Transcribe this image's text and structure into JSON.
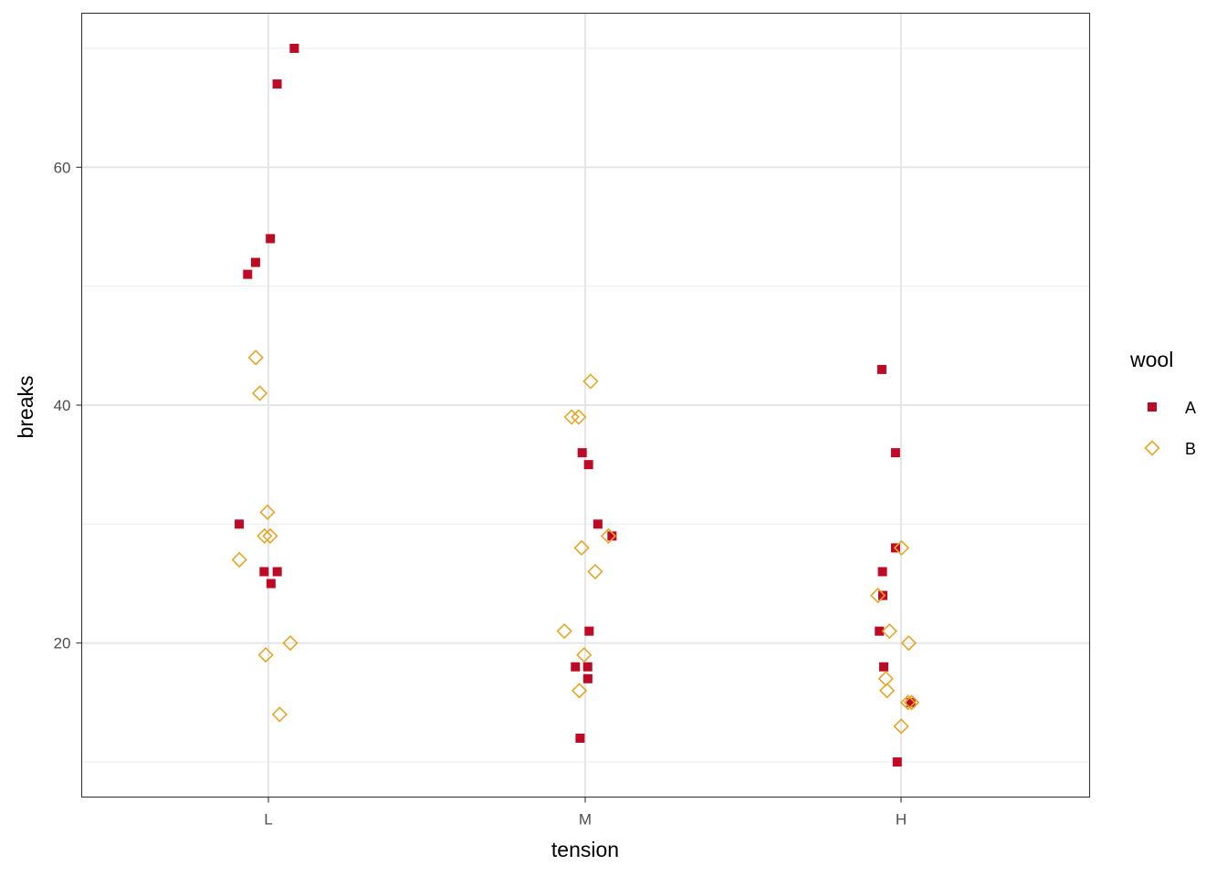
{
  "chart_data": {
    "type": "scatter",
    "title": "",
    "xlabel": "tension",
    "ylabel": "breaks",
    "categories": [
      "L",
      "M",
      "H"
    ],
    "y_ticks": [
      20,
      40,
      60
    ],
    "ylim": [
      7.05,
      72.95
    ],
    "grid": true,
    "legend": {
      "title": "wool",
      "position": "right"
    },
    "series": [
      {
        "name": "A",
        "marker": "filled-square",
        "color": "#BF0A26",
        "points": [
          {
            "x": "L",
            "y": 70
          },
          {
            "x": "L",
            "y": 67
          },
          {
            "x": "L",
            "y": 54
          },
          {
            "x": "L",
            "y": 52
          },
          {
            "x": "L",
            "y": 51
          },
          {
            "x": "L",
            "y": 30
          },
          {
            "x": "L",
            "y": 26
          },
          {
            "x": "L",
            "y": 26
          },
          {
            "x": "L",
            "y": 25
          },
          {
            "x": "M",
            "y": 36
          },
          {
            "x": "M",
            "y": 35
          },
          {
            "x": "M",
            "y": 30
          },
          {
            "x": "M",
            "y": 29
          },
          {
            "x": "M",
            "y": 21
          },
          {
            "x": "M",
            "y": 18
          },
          {
            "x": "M",
            "y": 18
          },
          {
            "x": "M",
            "y": 17
          },
          {
            "x": "M",
            "y": 12
          },
          {
            "x": "H",
            "y": 43
          },
          {
            "x": "H",
            "y": 36
          },
          {
            "x": "H",
            "y": 28
          },
          {
            "x": "H",
            "y": 26
          },
          {
            "x": "H",
            "y": 24
          },
          {
            "x": "H",
            "y": 21
          },
          {
            "x": "H",
            "y": 18
          },
          {
            "x": "H",
            "y": 15
          },
          {
            "x": "H",
            "y": 10
          }
        ]
      },
      {
        "name": "B",
        "marker": "open-diamond",
        "color": "#E8A525",
        "points": [
          {
            "x": "L",
            "y": 44
          },
          {
            "x": "L",
            "y": 41
          },
          {
            "x": "L",
            "y": 31
          },
          {
            "x": "L",
            "y": 29
          },
          {
            "x": "L",
            "y": 29
          },
          {
            "x": "L",
            "y": 27
          },
          {
            "x": "L",
            "y": 20
          },
          {
            "x": "L",
            "y": 19
          },
          {
            "x": "L",
            "y": 14
          },
          {
            "x": "M",
            "y": 42
          },
          {
            "x": "M",
            "y": 39
          },
          {
            "x": "M",
            "y": 39
          },
          {
            "x": "M",
            "y": 29
          },
          {
            "x": "M",
            "y": 28
          },
          {
            "x": "M",
            "y": 26
          },
          {
            "x": "M",
            "y": 21
          },
          {
            "x": "M",
            "y": 19
          },
          {
            "x": "M",
            "y": 16
          },
          {
            "x": "H",
            "y": 28
          },
          {
            "x": "H",
            "y": 24
          },
          {
            "x": "H",
            "y": 21
          },
          {
            "x": "H",
            "y": 20
          },
          {
            "x": "H",
            "y": 17
          },
          {
            "x": "H",
            "y": 16
          },
          {
            "x": "H",
            "y": 15
          },
          {
            "x": "H",
            "y": 15
          },
          {
            "x": "H",
            "y": 13
          }
        ]
      }
    ]
  }
}
